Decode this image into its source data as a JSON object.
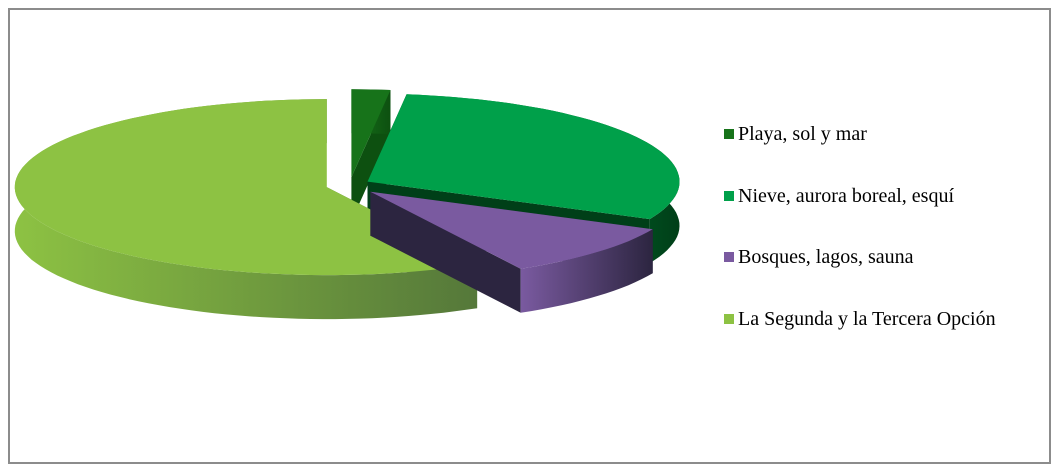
{
  "chart_data": {
    "type": "pie",
    "style": "3d-exploded",
    "title": "",
    "categories": [
      "Playa, sol y mar",
      "Nieve, aurora boreal, esquí",
      "Bosques, lagos, sauna",
      "La Segunda y la Tercera Opción"
    ],
    "values": [
      2,
      30,
      10,
      58
    ],
    "unit": "%",
    "legend_position": "right",
    "colors": [
      "#17731a",
      "#00a04a",
      "#7a5aa0",
      "#8dc243"
    ],
    "side_colors": [
      "#0d5010",
      "#003f18",
      "#2c2540",
      "#55783a"
    ]
  }
}
